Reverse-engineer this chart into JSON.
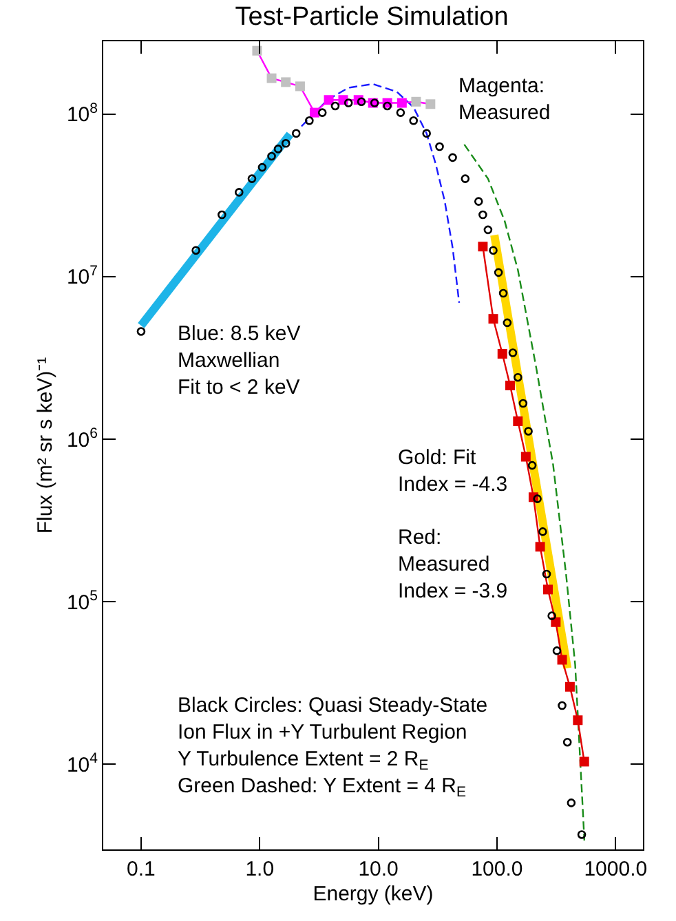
{
  "chart_data": {
    "type": "line",
    "title": "Test-Particle Simulation",
    "xlabel": "Energy (keV)",
    "ylabel": "Flux (m² sr s keV)⁻¹",
    "log": "xy",
    "grid": false,
    "xlim": [
      0.048,
      1700
    ],
    "xticks": [
      0.1,
      {
        "value": 1,
        "label": "1.0"
      },
      {
        "value": 10,
        "label": "10.0"
      },
      {
        "value": 100,
        "label": "100.0"
      },
      {
        "value": 1000,
        "label": "1000.0"
      }
    ],
    "ylim": [
      3000,
      280000000
    ],
    "yticks": [
      {
        "value": 10000,
        "label": "10$^{4}$"
      },
      {
        "value": 100000,
        "label": "10$^{5}$"
      },
      {
        "value": 1000000,
        "label": "10$^{6}$"
      },
      {
        "value": 10000000,
        "label": "10$^{7}$"
      },
      {
        "value": 100000000,
        "label": "10$^{8}$"
      }
    ],
    "series": [
      {
        "color": "#1eb4e8",
        "marker": "none",
        "line_style": "solid",
        "x": [
          0.1,
          1.8
        ],
        "values": [
          5000000,
          75000000
        ]
      },
      {
        "color": "#1a1aff",
        "marker": "none",
        "line_style": "dashed",
        "x": [
          2.25,
          3.72,
          5.6,
          9.0,
          14.3,
          19.8,
          25.5,
          30.5,
          36.3,
          42.3,
          48
        ],
        "values": [
          84000000,
          122000000,
          145000000,
          153000000,
          137000000,
          110000000,
          76000000,
          49000000,
          29000000,
          15000000,
          6900000
        ]
      },
      {
        "color": "#1a8c1a",
        "marker": "none",
        "line_style": "dashed",
        "x": [
          53,
          84,
          116,
          150,
          214,
          297,
          382,
          456,
          531,
          545
        ],
        "values": [
          65000000,
          40000000,
          22000000,
          11000000,
          2760000,
          700000,
          148000,
          41000,
          5000,
          3400
        ]
      },
      {
        "color": "#ffd700",
        "marker": "none",
        "line_style": "solid",
        "x": [
          95,
          392
        ],
        "values": [
          18000000,
          39000
        ]
      },
      {
        "color": "#e00000",
        "marker": "square",
        "line_style": "solid",
        "x": [
          76,
          93,
          111,
          129,
          150,
          175,
          203,
          231,
          269,
          313,
          354,
          412,
          480,
          544
        ],
        "values": [
          15300000,
          5500000,
          3350000,
          2140000,
          1290000,
          780000,
          440000,
          218000,
          119000,
          75000,
          44000,
          30000,
          18700,
          10400
        ]
      },
      {
        "color": "#ff00ff",
        "marker": "square",
        "line_style": "solid",
        "colors": [
          "#c0c0c0",
          "#c0c0c0",
          "#c0c0c0",
          "#c0c0c0",
          "#ff00ff",
          "#ff00ff",
          "#ff00ff",
          "#ff00ff",
          "#ff00ff",
          "#ff00ff",
          "#ff00ff",
          "#c0c0c0",
          "#c0c0c0"
        ],
        "x": [
          0.95,
          1.26,
          1.66,
          2.19,
          2.9,
          3.82,
          5.05,
          6.8,
          9.0,
          11.9,
          15.8,
          20.8,
          27.5
        ],
        "values": [
          245000000,
          166000000,
          157000000,
          148000000,
          102000000,
          122000000,
          122000000,
          122000000,
          117000000,
          117000000,
          117000000,
          119000000,
          115000000
        ]
      },
      {
        "type": "scatter",
        "color": "#000000",
        "marker": "circle",
        "x": [
          0.1,
          0.29,
          0.48,
          0.67,
          0.86,
          1.05,
          1.26,
          1.43,
          1.66,
          2.03,
          2.62,
          3.37,
          4.33,
          5.6,
          7.2,
          9.3,
          11.9,
          15.4,
          19.8,
          25.5,
          32.8,
          42.3,
          54,
          70,
          76,
          84,
          93,
          103,
          113,
          122,
          136,
          150,
          166,
          184,
          198,
          219,
          243,
          262,
          290,
          320,
          354,
          392,
          423,
          518
        ],
        "values": [
          4600000,
          14500000,
          24000000,
          33000000,
          40000000,
          47000000,
          55000000,
          61000000,
          66000000,
          76000000,
          91000000,
          102000000,
          112000000,
          117000000,
          119000000,
          117000000,
          112000000,
          102000000,
          91000000,
          76000000,
          63000000,
          54000000,
          40000000,
          29000000,
          24000000,
          19400000,
          14500000,
          10600000,
          7900000,
          5200000,
          3400000,
          2400000,
          1660000,
          1120000,
          690000,
          430000,
          270000,
          148000,
          82000,
          50000,
          23000,
          13700,
          5800,
          3700
        ]
      }
    ],
    "annotations": [
      "Magenta:\nMeasured",
      "Blue: 8.5 keV\nMaxwellian\nFit to < 2 keV",
      "Gold: Fit\nIndex = -4.3",
      "Red:\nMeasured\nIndex = -3.9",
      "Black Circles: Quasi Steady-State\nIon Flux in +Y Turbulent Region\nY Turbulence Extent = 2 R$_{E}$\nGreen Dashed: Y Extent = 4 R$_{E}$"
    ]
  }
}
